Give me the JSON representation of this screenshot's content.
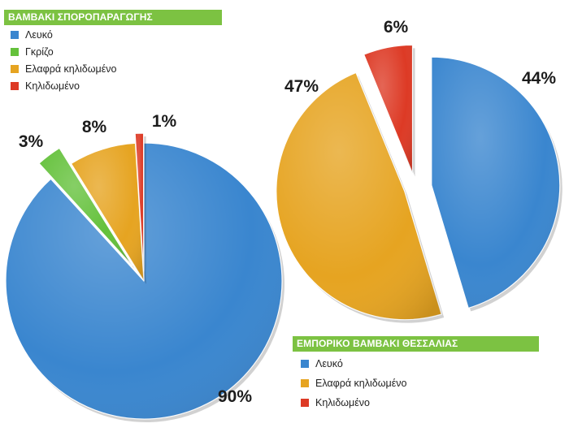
{
  "colors": {
    "blue": "#3a86cf",
    "green": "#64c13b",
    "orange": "#e6a421",
    "red": "#dd3a25",
    "legend_bar": "#7cc242"
  },
  "chart_data": [
    {
      "type": "pie",
      "title": "ΒΑΜΒΑΚΙ ΣΠΟΡΟΠΑΡΑΓΩΓΗΣ",
      "legend_placement": "top-left",
      "slices": [
        {
          "name": "Λευκό",
          "value": 90,
          "label": "90%",
          "color": "#3a86cf",
          "exploded": false
        },
        {
          "name": "Γκρίζο",
          "value": 3,
          "label": "3%",
          "color": "#64c13b",
          "exploded": true
        },
        {
          "name": "Ελαφρά κηλιδωμένο",
          "value": 8,
          "label": "8%",
          "color": "#e6a421",
          "exploded": false
        },
        {
          "name": "Κηλιδωμένο",
          "value": 1,
          "label": "1%",
          "color": "#dd3a25",
          "exploded": true
        }
      ]
    },
    {
      "type": "pie",
      "title": "ΕΜΠΟΡΙΚΟ ΒΑΜΒΑΚΙ ΘΕΣΣΑΛΙΑΣ",
      "legend_placement": "bottom-right",
      "slices": [
        {
          "name": "Λευκό",
          "value": 44,
          "label": "44%",
          "color": "#3a86cf",
          "exploded": true
        },
        {
          "name": "Ελαφρά κηλιδωμένο",
          "value": 47,
          "label": "47%",
          "color": "#e6a421",
          "exploded": true
        },
        {
          "name": "Κηλιδωμένο",
          "value": 6,
          "label": "6%",
          "color": "#dd3a25",
          "exploded": true
        }
      ]
    }
  ]
}
